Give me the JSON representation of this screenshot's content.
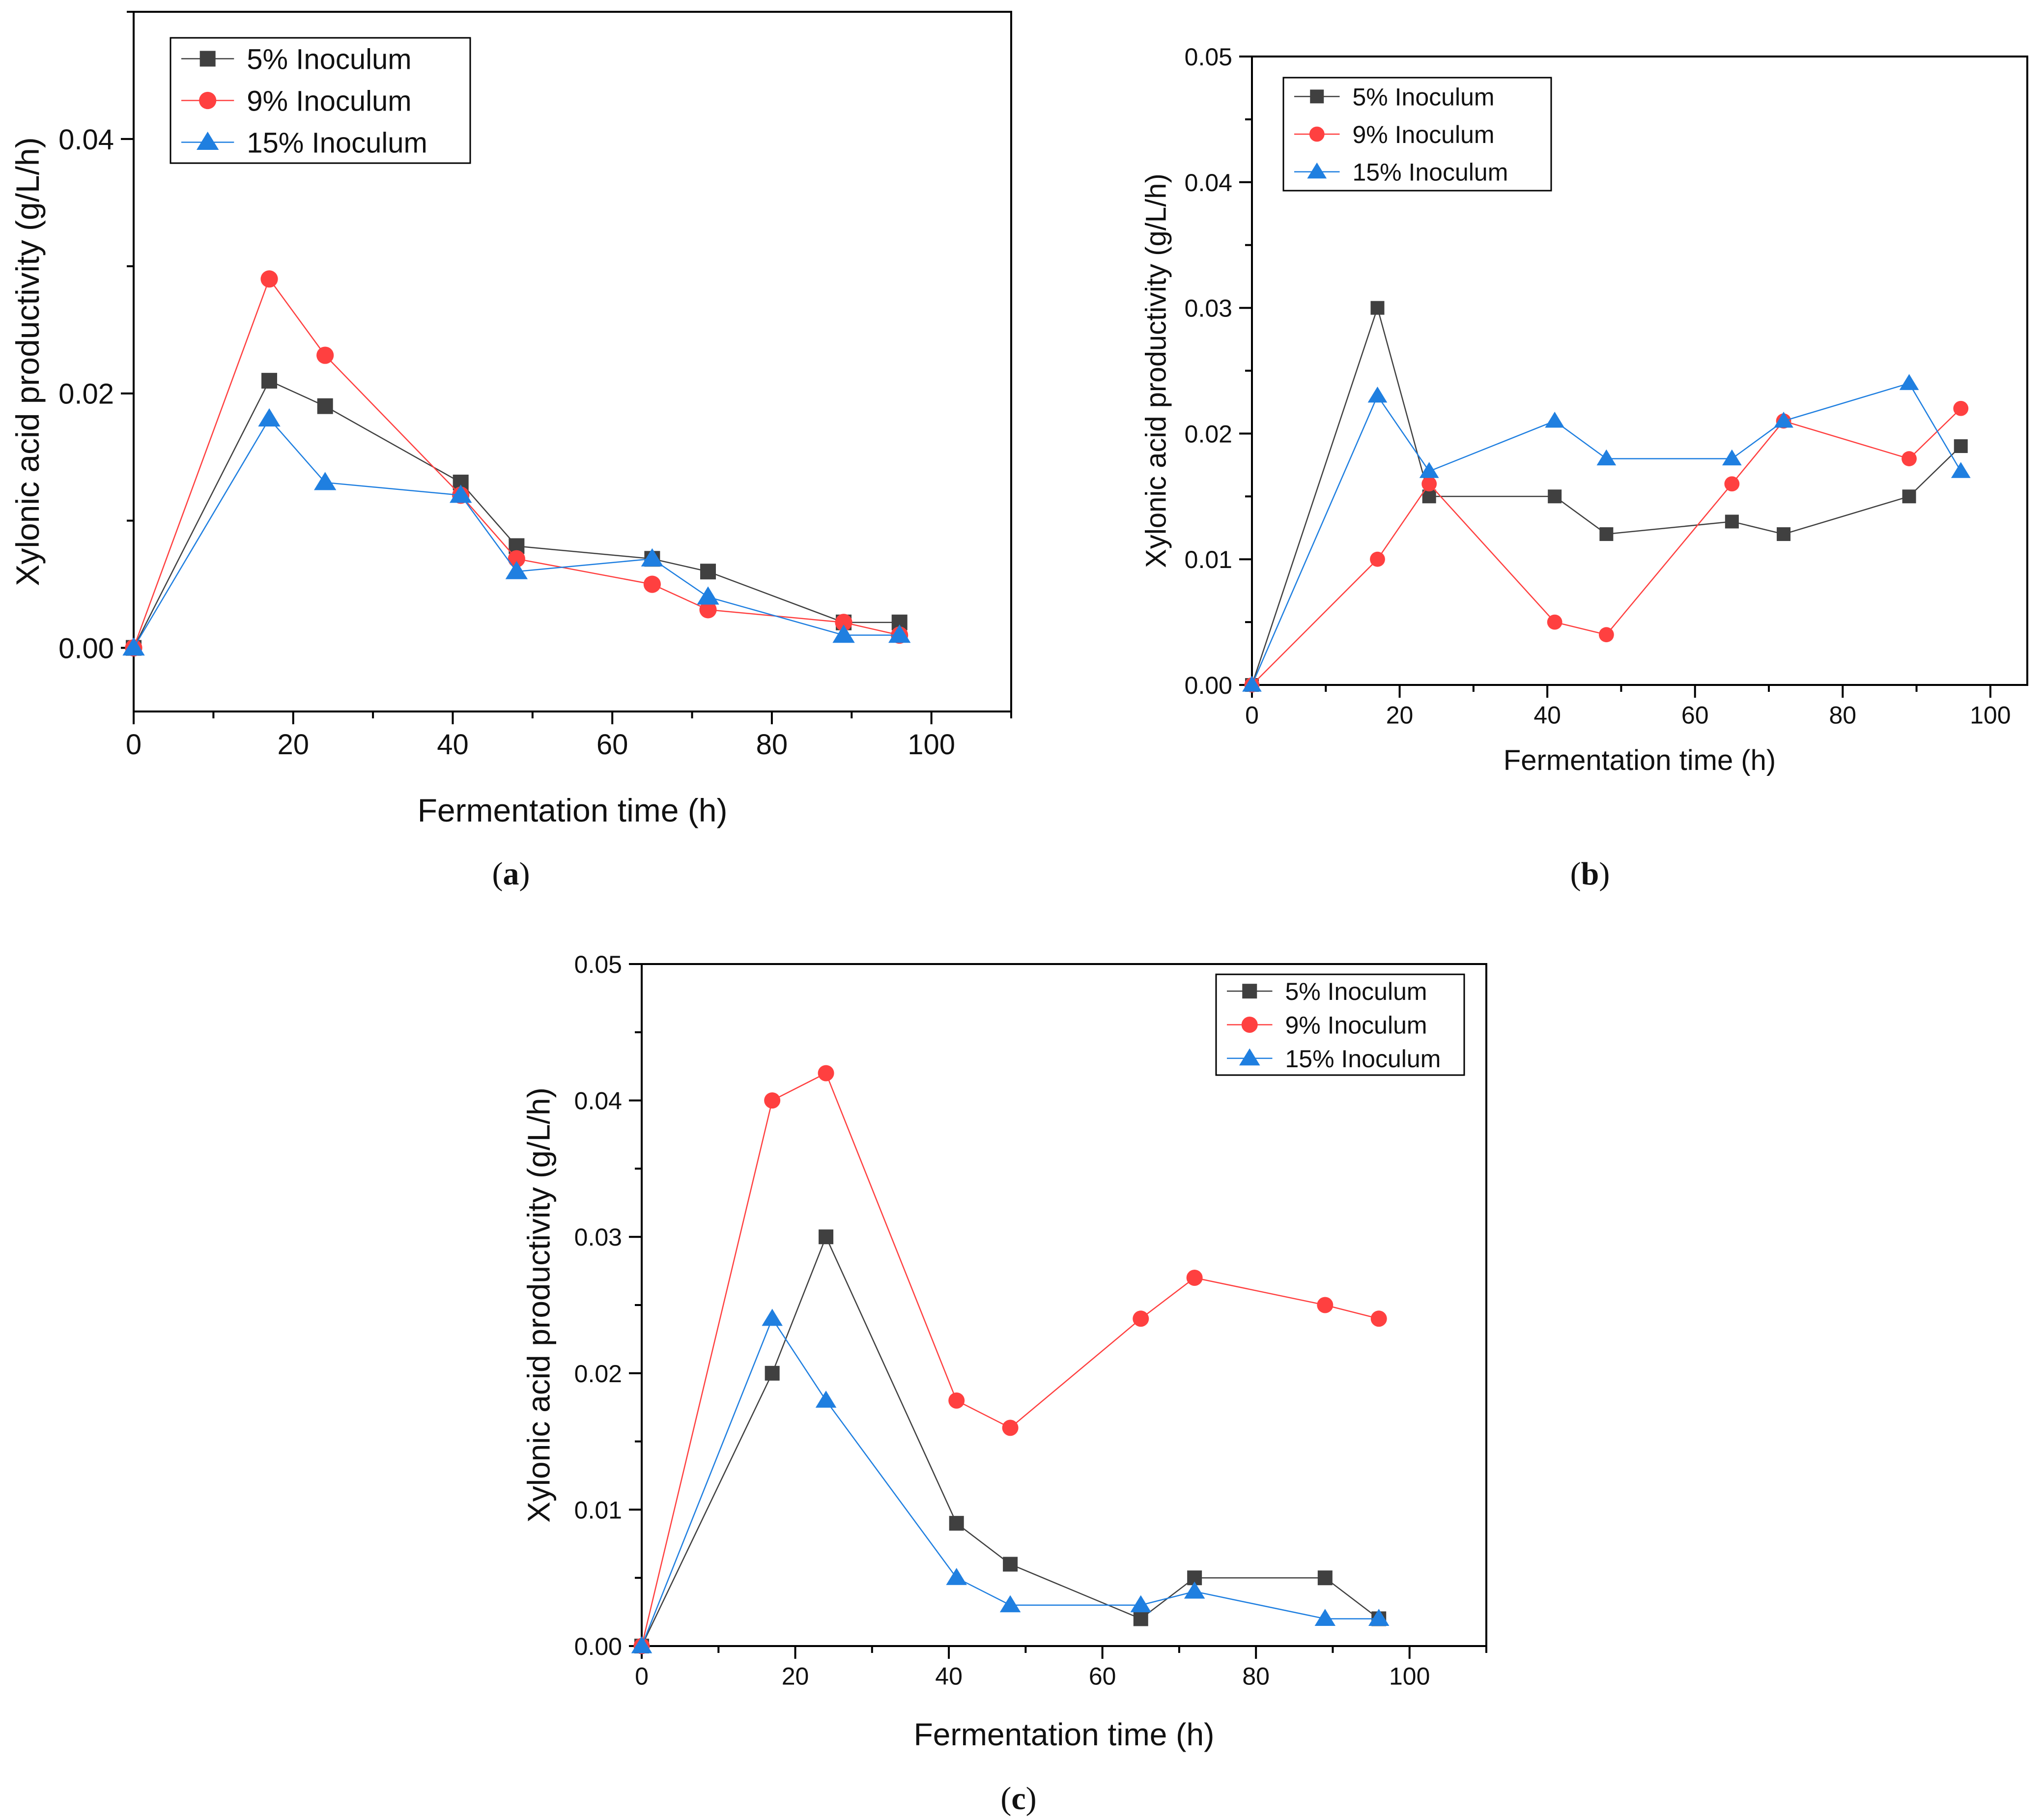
{
  "figure": {
    "colors": {
      "s5": "#404040",
      "s9": "#ff4040",
      "s15": "#1f7fe0",
      "axis": "#000000"
    }
  },
  "chart_data": [
    {
      "type": "line",
      "panel": "a",
      "panel_label": "(a)",
      "xlabel": "Fermentation time (h)",
      "ylabel": "Xylonic acid productivity (g/L/h)",
      "xlim": [
        0,
        110
      ],
      "ylim": [
        -0.005,
        0.05
      ],
      "xticks": [
        0,
        20,
        40,
        60,
        80,
        100
      ],
      "xtick_labels": [
        "0",
        "20",
        "40",
        "60",
        "80",
        "100"
      ],
      "yticks": [
        0.0,
        0.02,
        0.04
      ],
      "ytick_labels": [
        "0.00",
        "0.02",
        "0.04"
      ],
      "legend_position": "top-left",
      "series": [
        {
          "name": "5% Inoculum",
          "marker": "square",
          "x": [
            0,
            17,
            24,
            41,
            48,
            65,
            72,
            89,
            96
          ],
          "y": [
            0.0,
            0.021,
            0.019,
            0.013,
            0.008,
            0.007,
            0.006,
            0.002,
            0.002
          ]
        },
        {
          "name": "9% Inoculum",
          "marker": "circle",
          "x": [
            0,
            17,
            24,
            41,
            48,
            65,
            72,
            89,
            96
          ],
          "y": [
            0.0,
            0.029,
            0.023,
            0.012,
            0.007,
            0.005,
            0.003,
            0.002,
            0.001
          ]
        },
        {
          "name": "15% Inoculum",
          "marker": "triangle",
          "x": [
            0,
            17,
            24,
            41,
            48,
            65,
            72,
            89,
            96
          ],
          "y": [
            0.0,
            0.018,
            0.013,
            0.012,
            0.006,
            0.007,
            0.004,
            0.001,
            0.001
          ]
        }
      ]
    },
    {
      "type": "line",
      "panel": "b",
      "panel_label": "(b)",
      "xlabel": "Fermentation time (h)",
      "ylabel": "Xylonic acid productivity (g/L/h)",
      "xlim": [
        0,
        105
      ],
      "ylim": [
        0.0,
        0.05
      ],
      "xticks": [
        0,
        20,
        40,
        60,
        80,
        100
      ],
      "xtick_labels": [
        "0",
        "20",
        "40",
        "60",
        "80",
        "100"
      ],
      "yticks": [
        0.0,
        0.01,
        0.02,
        0.03,
        0.04,
        0.05
      ],
      "ytick_labels": [
        "0.00",
        "0.01",
        "0.02",
        "0.03",
        "0.04",
        "0.05"
      ],
      "legend_position": "top-left",
      "series": [
        {
          "name": "5% Inoculum",
          "marker": "square",
          "x": [
            0,
            17,
            24,
            41,
            48,
            65,
            72,
            89,
            96
          ],
          "y": [
            0.0,
            0.03,
            0.015,
            0.015,
            0.012,
            0.013,
            0.012,
            0.015,
            0.019
          ]
        },
        {
          "name": "9% Inoculum",
          "marker": "circle",
          "x": [
            0,
            17,
            24,
            41,
            48,
            65,
            72,
            89,
            96
          ],
          "y": [
            0.0,
            0.01,
            0.016,
            0.005,
            0.004,
            0.016,
            0.021,
            0.018,
            0.022
          ]
        },
        {
          "name": "15% Inoculum",
          "marker": "triangle",
          "x": [
            0,
            17,
            24,
            41,
            48,
            65,
            72,
            89,
            96
          ],
          "y": [
            0.0,
            0.023,
            0.017,
            0.021,
            0.018,
            0.018,
            0.021,
            0.024,
            0.017
          ]
        }
      ]
    },
    {
      "type": "line",
      "panel": "c",
      "panel_label": "(c)",
      "xlabel": "Fermentation time (h)",
      "ylabel": "Xylonic acid productivity (g/L/h)",
      "xlim": [
        0,
        110
      ],
      "ylim": [
        0.0,
        0.05
      ],
      "xticks": [
        0,
        20,
        40,
        60,
        80,
        100
      ],
      "xtick_labels": [
        "0",
        "20",
        "40",
        "60",
        "80",
        "100"
      ],
      "yticks": [
        0.0,
        0.01,
        0.02,
        0.03,
        0.04,
        0.05
      ],
      "ytick_labels": [
        "0.00",
        "0.01",
        "0.02",
        "0.03",
        "0.04",
        "0.05"
      ],
      "legend_position": "top-right",
      "series": [
        {
          "name": "5% Inoculum",
          "marker": "square",
          "x": [
            0,
            17,
            24,
            41,
            48,
            65,
            72,
            89,
            96
          ],
          "y": [
            0.0,
            0.02,
            0.03,
            0.009,
            0.006,
            0.002,
            0.005,
            0.005,
            0.002
          ]
        },
        {
          "name": "9% Inoculum",
          "marker": "circle",
          "x": [
            0,
            17,
            24,
            41,
            48,
            65,
            72,
            89,
            96
          ],
          "y": [
            0.0,
            0.04,
            0.042,
            0.018,
            0.016,
            0.024,
            0.027,
            0.025,
            0.024
          ]
        },
        {
          "name": "15% Inoculum",
          "marker": "triangle",
          "x": [
            0,
            17,
            24,
            41,
            48,
            65,
            72,
            89,
            96
          ],
          "y": [
            0.0,
            0.024,
            0.018,
            0.005,
            0.003,
            0.003,
            0.004,
            0.002,
            0.002
          ]
        }
      ]
    }
  ]
}
